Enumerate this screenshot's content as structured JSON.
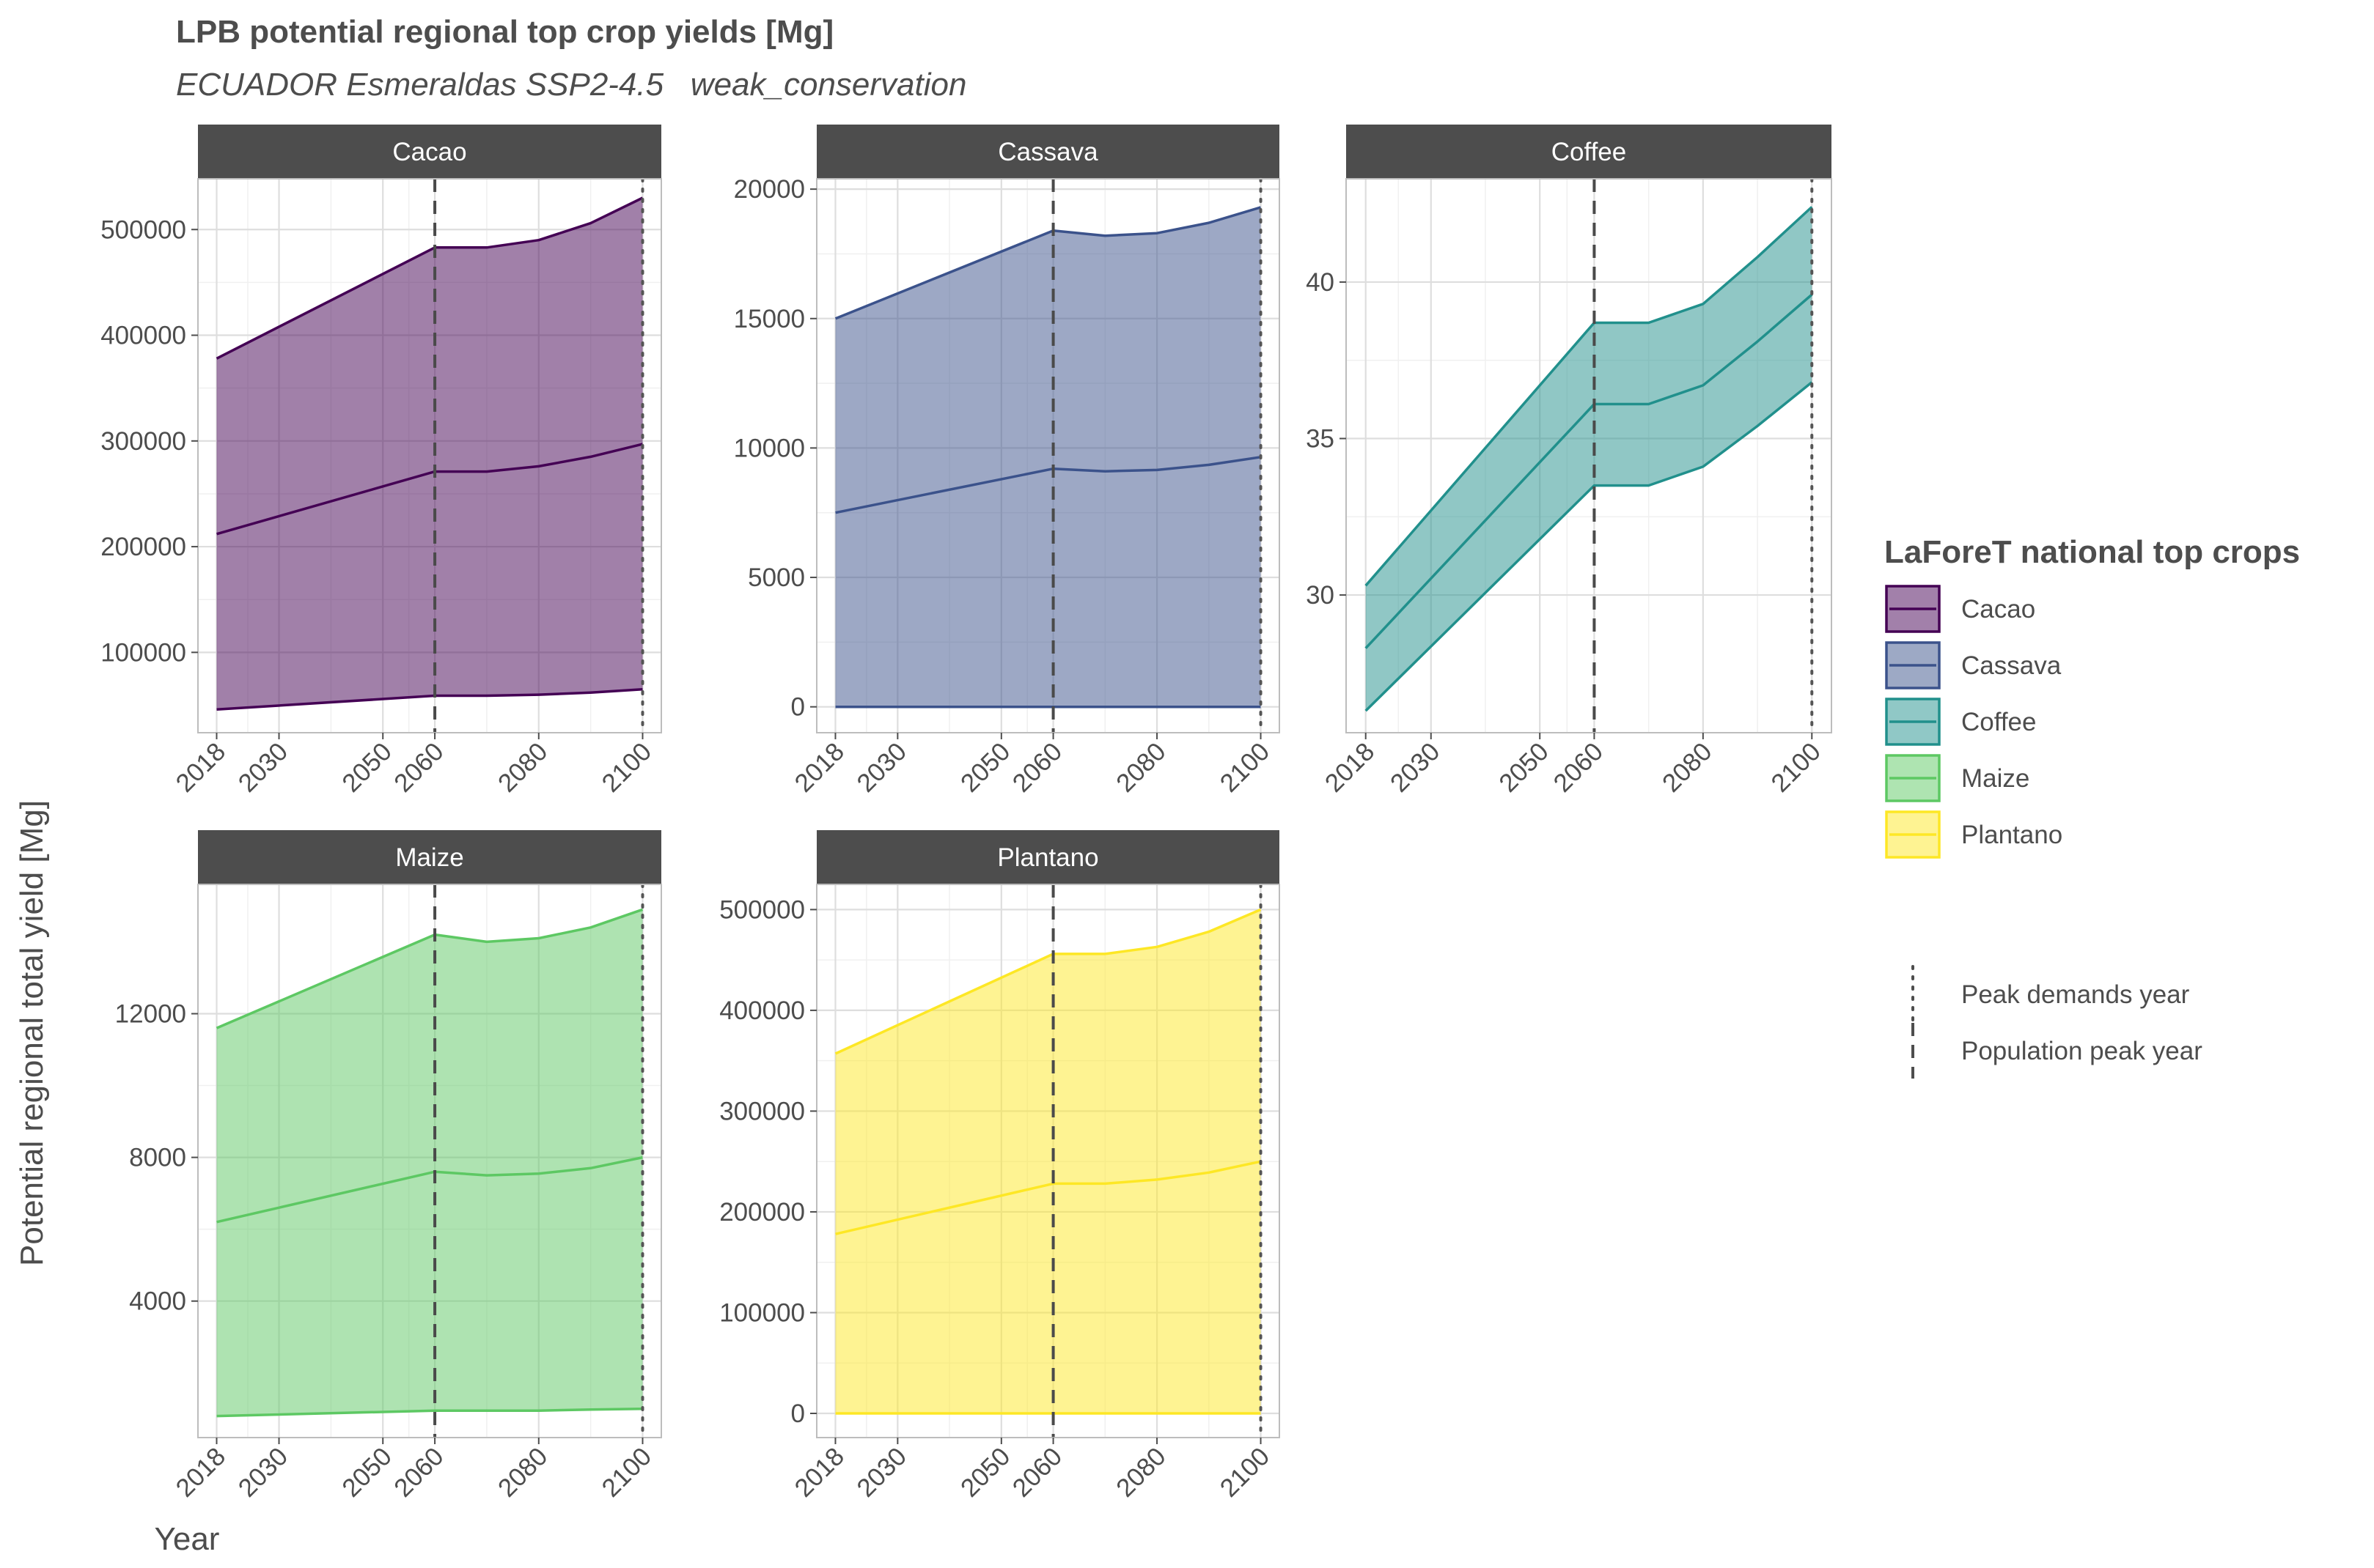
{
  "chart_data": {
    "type": "area",
    "title": "LPB potential regional top crop yields [Mg]",
    "subtitle": "ECUADOR Esmeraldas SSP2-4.5   weak_conservation",
    "xlabel": "Year",
    "ylabel": "Potential regional total yield [Mg]",
    "x_ticks": [
      2018,
      2030,
      2050,
      2060,
      2080,
      2100
    ],
    "xlim": [
      2014.4,
      2103.6
    ],
    "reference_lines": [
      {
        "name": "Population peak year",
        "x": 2060,
        "style": "dashed"
      },
      {
        "name": "Peak demands year",
        "x": 2100,
        "style": "dotted"
      }
    ],
    "legend": {
      "title": "LaForeT national top crops",
      "position": "right",
      "items": [
        "Cacao",
        "Cassava",
        "Coffee",
        "Maize",
        "Plantano"
      ],
      "line_items": [
        "Peak demands year",
        "Population peak year"
      ]
    },
    "grid": true,
    "panels": [
      {
        "name": "Cacao",
        "color": "#440154",
        "ylim": [
          24000,
          548000
        ],
        "y_ticks": [
          100000,
          200000,
          300000,
          400000,
          500000
        ],
        "x": [
          2018,
          2060,
          2070,
          2080,
          2090,
          2100
        ],
        "upper": [
          378000,
          483000,
          483000,
          490000,
          506000,
          530000
        ],
        "middle": [
          212000,
          271000,
          271000,
          276000,
          285000,
          297000
        ],
        "lower": [
          46000,
          59000,
          59000,
          60000,
          62000,
          65000
        ]
      },
      {
        "name": "Cassava",
        "color": "#3B528B",
        "ylim": [
          -1000,
          20400
        ],
        "y_ticks": [
          0,
          5000,
          10000,
          15000,
          20000
        ],
        "x": [
          2018,
          2060,
          2070,
          2080,
          2090,
          2100
        ],
        "upper": [
          15000,
          18400,
          18200,
          18300,
          18700,
          19300
        ],
        "middle": [
          7500,
          9200,
          9100,
          9150,
          9350,
          9650
        ],
        "lower": [
          0,
          0,
          0,
          0,
          0,
          0
        ]
      },
      {
        "name": "Coffee",
        "color": "#21908C",
        "ylim": [
          25.6,
          43.3
        ],
        "y_ticks": [
          30,
          35,
          40
        ],
        "x": [
          2018,
          2060,
          2070,
          2080,
          2090,
          2100
        ],
        "upper": [
          30.3,
          38.7,
          38.7,
          39.3,
          40.8,
          42.4
        ],
        "middle": [
          28.3,
          36.1,
          36.1,
          36.7,
          38.1,
          39.6
        ],
        "lower": [
          26.3,
          33.5,
          33.5,
          34.1,
          35.4,
          36.8
        ]
      },
      {
        "name": "Maize",
        "color": "#5DC863",
        "ylim": [
          200,
          15600
        ],
        "y_ticks": [
          4000,
          8000,
          12000
        ],
        "x": [
          2018,
          2060,
          2070,
          2080,
          2090,
          2100
        ],
        "upper": [
          11600,
          14200,
          14000,
          14100,
          14400,
          14900
        ],
        "middle": [
          6200,
          7600,
          7500,
          7550,
          7700,
          8000
        ],
        "lower": [
          800,
          950,
          950,
          950,
          980,
          1000
        ]
      },
      {
        "name": "Plantano",
        "color": "#FDE725",
        "ylim": [
          -24000,
          525000
        ],
        "y_ticks": [
          0,
          100000,
          200000,
          300000,
          400000,
          500000
        ],
        "x": [
          2018,
          2060,
          2070,
          2080,
          2090,
          2100
        ],
        "upper": [
          357000,
          456000,
          456000,
          463000,
          478000,
          500000
        ],
        "middle": [
          178000,
          228000,
          228000,
          232000,
          239000,
          250000
        ],
        "lower": [
          0,
          0,
          0,
          0,
          0,
          0
        ]
      }
    ]
  }
}
